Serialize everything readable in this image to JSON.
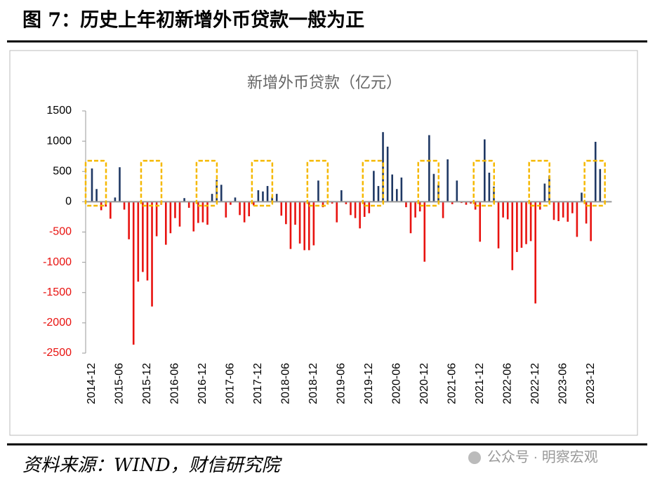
{
  "title": "图 7：历史上年初新增外币贷款一般为正",
  "source": "资料来源：WIND，财信研究院",
  "watermark": "公众号 · 明察宏观",
  "chart_data": {
    "type": "bar",
    "title": "新增外币贷款（亿元）",
    "categories": [
      "2014-12",
      null,
      null,
      null,
      null,
      null,
      "2015-06",
      null,
      null,
      null,
      null,
      null,
      "2015-12",
      null,
      null,
      null,
      null,
      null,
      "2016-06",
      null,
      null,
      null,
      null,
      null,
      "2016-12",
      null,
      null,
      null,
      null,
      null,
      "2017-06",
      null,
      null,
      null,
      null,
      null,
      "2017-12",
      null,
      null,
      null,
      null,
      null,
      "2018-06",
      null,
      null,
      null,
      null,
      null,
      "2018-12",
      null,
      null,
      null,
      null,
      null,
      "2019-06",
      null,
      null,
      null,
      null,
      null,
      "2019-12",
      null,
      null,
      null,
      null,
      null,
      "2020-06",
      null,
      null,
      null,
      null,
      null,
      "2020-12",
      null,
      null,
      null,
      null,
      null,
      "2021-06",
      null,
      null,
      null,
      null,
      null,
      "2021-12",
      null,
      null,
      null,
      null,
      null,
      "2022-06",
      null,
      null,
      null,
      null,
      null,
      "2022-12",
      null,
      null,
      null,
      null,
      null,
      "2023-06",
      null,
      null,
      null,
      null,
      null,
      "2023-12",
      null,
      null
    ],
    "values": [
      550,
      210,
      -140,
      -80,
      -280,
      70,
      570,
      -130,
      -620,
      -2360,
      -1320,
      -1160,
      -1300,
      -1730,
      -570,
      -50,
      -710,
      -520,
      -270,
      -410,
      60,
      -100,
      -490,
      -350,
      -340,
      -380,
      130,
      360,
      280,
      -260,
      -50,
      70,
      -220,
      -340,
      -240,
      -60,
      190,
      170,
      260,
      80,
      130,
      -230,
      -370,
      -780,
      -380,
      -690,
      -800,
      -800,
      -720,
      350,
      -90,
      -40,
      -30,
      -340,
      190,
      -40,
      -220,
      -270,
      -440,
      -250,
      -190,
      510,
      260,
      1150,
      910,
      450,
      210,
      400,
      -90,
      -520,
      -260,
      -160,
      -990,
      1100,
      460,
      280,
      -270,
      700,
      -40,
      350,
      -20,
      -50,
      -30,
      -130,
      -660,
      1030,
      480,
      250,
      -770,
      -260,
      -290,
      -1130,
      -830,
      -760,
      -700,
      -650,
      -1680,
      -130,
      300,
      430,
      -300,
      -320,
      -260,
      -330,
      -190,
      -580,
      150,
      -360,
      -650,
      990,
      540
    ],
    "positive_color": "#1f3864",
    "negative_color": "#e8120f",
    "ylim": [
      -2500,
      1500
    ],
    "yticks": [
      1500,
      1000,
      500,
      0,
      -500,
      -1000,
      -1500,
      -2000,
      -2500
    ]
  }
}
